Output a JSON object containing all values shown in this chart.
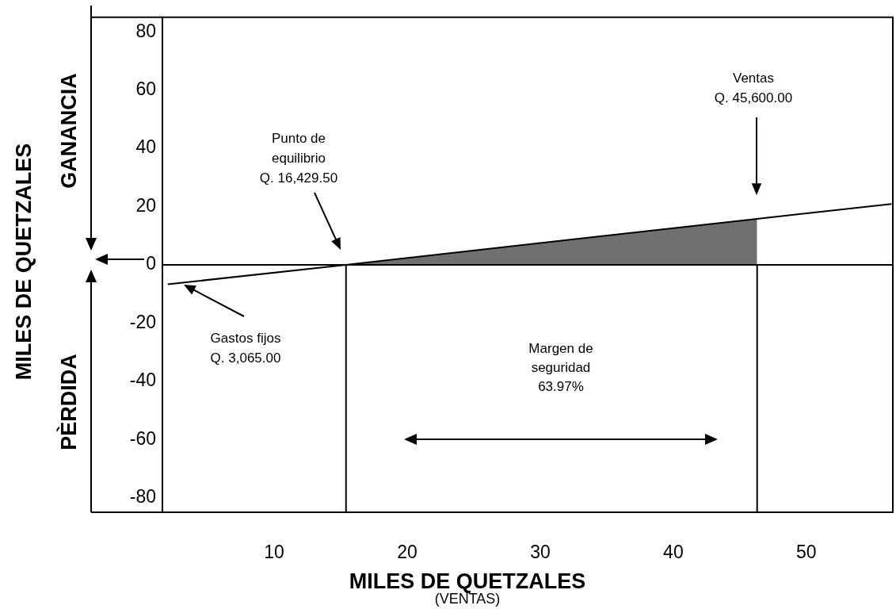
{
  "chart_data": {
    "type": "line",
    "xlabel": "MILES DE QUETZALES",
    "ylabel": "MILES DE QUETZALES",
    "xlim": [
      1.6,
      56.5
    ],
    "ylim": [
      -85,
      85
    ],
    "xticks": [
      10,
      20,
      30,
      40,
      50
    ],
    "yticks": [
      -80,
      -60,
      -40,
      -20,
      0,
      20,
      40,
      60,
      80
    ],
    "grid": false,
    "marker": "none",
    "line_style": "solid",
    "series": [
      {
        "type": "area",
        "color": "#707070",
        "x": [
          15.4,
          46.3
        ],
        "values": [
          0,
          15.8
        ]
      },
      {
        "type": "line",
        "color": "#000000",
        "x": [
          2,
          15.4,
          46.3,
          56.4
        ],
        "values": [
          -6.7,
          0,
          15.8,
          20.9
        ]
      }
    ],
    "ref_lines": [
      {
        "axis": "y",
        "value": 0,
        "color": "#000000"
      },
      {
        "axis": "x",
        "value": 15.4,
        "color": "#000000"
      },
      {
        "axis": "x",
        "value": 46.3,
        "color": "#000000"
      }
    ],
    "annotations": [
      "Punto de\nequilibrio\nQ. 16,429.50",
      "Ventas\nQ. 45,600.00",
      "Gastos fijos\nQ. 3,065.00",
      "GANANCIA",
      "PÈRDIDA",
      "(VENTAS)",
      "Margen de\nseguridad\n63.97%"
    ]
  }
}
